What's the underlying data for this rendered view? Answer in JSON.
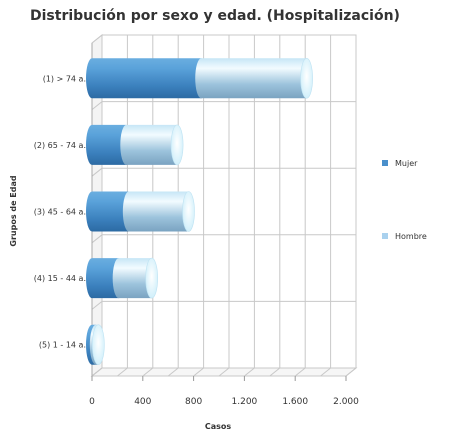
{
  "chart_data": {
    "type": "bar",
    "orientation": "horizontal",
    "stacked": true,
    "style": "3d-cylinder",
    "title": "Distribución por sexo y edad. (Hospitalización)",
    "xlabel": "Casos",
    "ylabel": "Grupos de Edad",
    "xlim": [
      0,
      2000
    ],
    "xticks": [
      0,
      400,
      800,
      1200,
      1600,
      2000
    ],
    "xtick_labels": [
      "0",
      "400",
      "800",
      "1.200",
      "1.600",
      "2.000"
    ],
    "categories": [
      "(1) > 74 a.",
      "(2) 65 - 74 a.",
      "(3) 45 - 64 a.",
      "(4) 15 - 44 a.",
      "(5) 1 - 14 a."
    ],
    "series": [
      {
        "name": "Mujer",
        "values": [
          860,
          270,
          290,
          210,
          30
        ],
        "color": "#4a8fcb"
      },
      {
        "name": "Hombre",
        "values": [
          830,
          400,
          470,
          260,
          20
        ],
        "color": "#a9d1ee"
      }
    ],
    "grid": true,
    "legend_position": "right"
  }
}
